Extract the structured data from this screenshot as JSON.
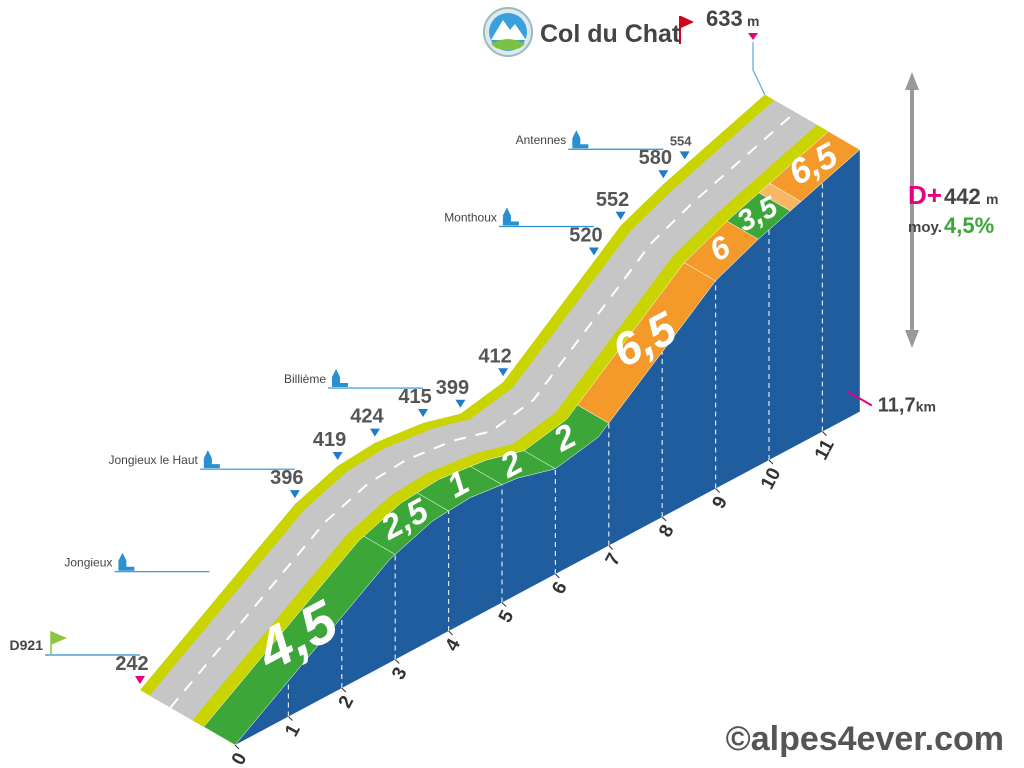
{
  "chart_data": {
    "type": "profile",
    "title": "Col du Chat",
    "altitude_unit": "m",
    "xlim": [
      0,
      11.7
    ],
    "xticks": [
      0,
      1,
      2,
      3,
      4,
      5,
      6,
      7,
      8,
      9,
      10,
      11
    ],
    "distance": {
      "label": "11,7",
      "unit": "km"
    },
    "waypoints": {
      "x": [
        0,
        2.9,
        3.7,
        4.4,
        5.3,
        6.0,
        6.8,
        8.5,
        9.0,
        9.8,
        11.7
      ],
      "values": [
        242,
        396,
        419,
        424,
        415,
        399,
        412,
        520,
        552,
        580,
        633
      ]
    },
    "side_points": {
      "x": [
        10.2
      ],
      "values": [
        554
      ]
    },
    "places": {
      "names": [
        "D921",
        "Jongieux",
        "Jongieux le Haut",
        "Billième",
        "Monthoux",
        "Antennes"
      ],
      "x": [
        0,
        1.3,
        2.9,
        5.3,
        8.5,
        9.8
      ]
    },
    "gradients": {
      "bins": [
        0,
        3,
        4,
        5,
        6,
        7,
        9,
        9.8,
        10.4,
        10.6,
        11.7
      ],
      "values": [
        4.5,
        2.5,
        1,
        2,
        2,
        6.5,
        6,
        3.5,
        5,
        6.5
      ],
      "value_labels": [
        "4,5",
        "2,5",
        "1",
        "2",
        "2",
        "6,5",
        "6",
        "3,5",
        null,
        "6,5"
      ],
      "colors": [
        "#3da639",
        "#3da639",
        "#3da639",
        "#3da639",
        "#3da639",
        "#f39a2b",
        "#f39a2b",
        "#3da639",
        "#f8b764",
        "#f39a2b"
      ]
    },
    "elevation_gain": {
      "prefix": "D+",
      "value": 442,
      "unit": "m"
    },
    "average": {
      "prefix": "moy.",
      "value": 4.5,
      "label": "4,5%"
    },
    "credit": "©alpes4ever.com"
  }
}
